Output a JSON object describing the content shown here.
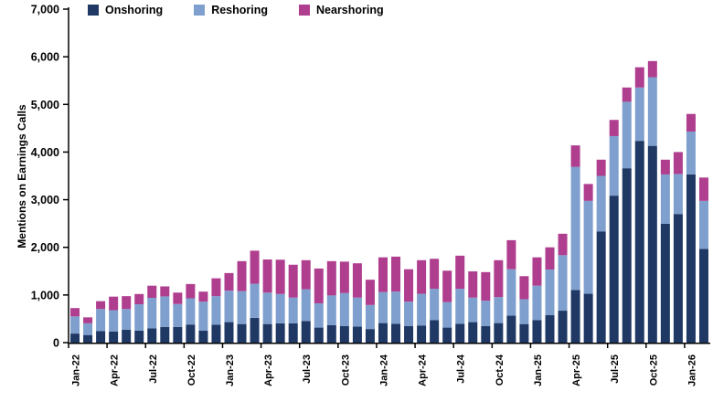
{
  "chart_data": {
    "type": "bar",
    "stacked": true,
    "title": "",
    "xlabel": "",
    "ylabel": "Mentions on Earnings Calls",
    "ylim": [
      0,
      7000
    ],
    "ytick_step": 1000,
    "grid": false,
    "legend_position": "top",
    "categories": [
      "Jan-22",
      "Feb-22",
      "Mar-22",
      "Apr-22",
      "May-22",
      "Jun-22",
      "Jul-22",
      "Aug-22",
      "Sep-22",
      "Oct-22",
      "Nov-22",
      "Dec-22",
      "Jan-23",
      "Feb-23",
      "Mar-23",
      "Apr-23",
      "May-23",
      "Jun-23",
      "Jul-23",
      "Aug-23",
      "Sep-23",
      "Oct-23",
      "Nov-23",
      "Dec-23",
      "Jan-24",
      "Feb-24",
      "Mar-24",
      "Apr-24",
      "May-24",
      "Jun-24",
      "Jul-24",
      "Aug-24",
      "Sep-24",
      "Oct-24",
      "Nov-24",
      "Dec-24",
      "Jan-25",
      "Feb-25",
      "Mar-25",
      "Apr-25",
      "May-25",
      "Jun-25",
      "Jul-25",
      "Aug-25",
      "Sep-25",
      "Oct-25",
      "Nov-25",
      "Dec-25",
      "Jan-26",
      "Feb-26"
    ],
    "x_tick_labels": [
      "Jan-22",
      "Apr-22",
      "Jul-22",
      "Oct-22",
      "Jan-23",
      "Apr-23",
      "Jul-23",
      "Oct-23",
      "Jan-24",
      "Apr-24",
      "Jul-24",
      "Oct-24",
      "Jan-25",
      "Apr-25",
      "Jul-25",
      "Oct-25",
      "Jan-26"
    ],
    "x_tick_every": 3,
    "series": [
      {
        "name": "Onshoring",
        "color": "#1F3864",
        "values": [
          190,
          160,
          240,
          235,
          270,
          250,
          300,
          330,
          330,
          380,
          250,
          375,
          430,
          390,
          520,
          390,
          405,
          405,
          455,
          315,
          365,
          345,
          335,
          285,
          410,
          395,
          345,
          360,
          470,
          315,
          395,
          430,
          345,
          410,
          565,
          390,
          470,
          575,
          670,
          1105,
          1025,
          2335,
          3085,
          3660,
          4235,
          4130,
          2495,
          2700,
          3530,
          1965
        ]
      },
      {
        "name": "Reshoring",
        "color": "#7FA0CE",
        "values": [
          360,
          245,
          465,
          445,
          435,
          555,
          640,
          640,
          480,
          550,
          610,
          600,
          660,
          690,
          715,
          660,
          615,
          540,
          665,
          510,
          625,
          695,
          610,
          505,
          650,
          675,
          515,
          665,
          660,
          535,
          735,
          515,
          535,
          545,
          975,
          520,
          725,
          960,
          1165,
          2585,
          1950,
          1165,
          1250,
          1395,
          1120,
          1440,
          1035,
          840,
          900,
          1010
        ]
      },
      {
        "name": "Nearshoring",
        "color": "#AF3E8F",
        "values": [
          175,
          125,
          165,
          285,
          270,
          215,
          255,
          210,
          240,
          300,
          210,
          375,
          370,
          630,
          695,
          695,
          720,
          690,
          610,
          730,
          720,
          660,
          720,
          530,
          730,
          735,
          680,
          705,
          630,
          660,
          695,
          550,
          600,
          775,
          610,
          485,
          595,
          465,
          450,
          450,
          355,
          340,
          340,
          300,
          425,
          340,
          310,
          460,
          370,
          490
        ]
      }
    ],
    "axis_color": "#000000",
    "label_color": "#000000"
  }
}
